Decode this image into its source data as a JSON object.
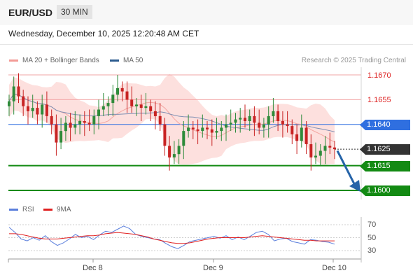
{
  "header": {
    "symbol": "EUR/USD",
    "timeframe": "30 MIN",
    "datetime": "Wednesday, December 10, 2025 12:20:48 AM CET"
  },
  "legend": {
    "ma20_label": "MA 20 + Bollinger Bands",
    "ma50_label": "MA 50",
    "credit": "Research © 2025 Trading Central",
    "ma20_color": "#f39b96",
    "ma50_color": "#2c5b8e"
  },
  "levels": {
    "r2": "1.1670",
    "r1": "1.1655",
    "pivot": "1.1640",
    "last": "1.1625",
    "s1": "1.1615",
    "s2": "1.1600"
  },
  "colors": {
    "resistance": "#d22222",
    "pivot": "#2f6fe0",
    "last": "#333333",
    "support": "#138a13",
    "arrow": "#2563a8",
    "up_candle": "#2e8b3a",
    "down_candle": "#c82323",
    "bollinger_fill": "#fde0de",
    "rsi": "#5b7fdc",
    "rsi_ma": "#e02020"
  },
  "rsi_panel": {
    "rsi_label": "RSI",
    "ma_label": "9MA",
    "ticks": [
      "70",
      "50",
      "30"
    ]
  },
  "x_axis": [
    "Dec 8",
    "Dec 9",
    "Dec 10"
  ],
  "chart_data": {
    "type": "candlestick",
    "instrument": "EUR/USD",
    "timeframe": "30 MIN",
    "price_levels": [
      {
        "value": 1.167,
        "kind": "resistance"
      },
      {
        "value": 1.1655,
        "kind": "resistance"
      },
      {
        "value": 1.164,
        "kind": "pivot"
      },
      {
        "value": 1.1625,
        "kind": "last"
      },
      {
        "value": 1.1615,
        "kind": "support"
      },
      {
        "value": 1.16,
        "kind": "support"
      }
    ],
    "close_trace": [
      1.1654,
      1.1663,
      1.1657,
      1.1651,
      1.1648,
      1.165,
      1.1646,
      1.1652,
      1.1645,
      1.164,
      1.1629,
      1.1636,
      1.1641,
      1.1638,
      1.164,
      1.1642,
      1.1641,
      1.164,
      1.1645,
      1.1649,
      1.1651,
      1.1653,
      1.1658,
      1.1662,
      1.166,
      1.1655,
      1.1651,
      1.1652,
      1.165,
      1.1651,
      1.1648,
      1.1645,
      1.164,
      1.1627,
      1.162,
      1.1622,
      1.1627,
      1.1636,
      1.1638,
      1.1637,
      1.1636,
      1.1638,
      1.1637,
      1.1635,
      1.1636,
      1.1638,
      1.164,
      1.1641,
      1.1643,
      1.1644,
      1.1642,
      1.1645,
      1.1641,
      1.1638,
      1.164,
      1.1645,
      1.1648,
      1.1642,
      1.164,
      1.1639,
      1.1634,
      1.163,
      1.1638,
      1.1628,
      1.162,
      1.1621,
      1.1624,
      1.1627,
      1.1626,
      1.1625
    ],
    "rsi": [
      66,
      58,
      48,
      45,
      50,
      46,
      53,
      44,
      38,
      42,
      48,
      55,
      50,
      52,
      47,
      54,
      60,
      58,
      63,
      68,
      64,
      55,
      52,
      50,
      48,
      47,
      41,
      36,
      33,
      38,
      44,
      46,
      48,
      50,
      52,
      49,
      53,
      47,
      51,
      47,
      52,
      58,
      60,
      55,
      45,
      48,
      49,
      44,
      42,
      40,
      47,
      46,
      44,
      43,
      40
    ],
    "rsi_ma": [
      56,
      56,
      55,
      53,
      51,
      49,
      48,
      48,
      48,
      49,
      50,
      51,
      52,
      53,
      53,
      54,
      56,
      57,
      58,
      57,
      56,
      55,
      53,
      51,
      48,
      46,
      44,
      42,
      41,
      41,
      42,
      44,
      46,
      48,
      49,
      50,
      50,
      50,
      50,
      50,
      51,
      52,
      53,
      52,
      51,
      50,
      49,
      48,
      47,
      46,
      46,
      45,
      45,
      45,
      45
    ],
    "x_tick_labels": [
      "Dec 8",
      "Dec 9",
      "Dec 10"
    ]
  }
}
